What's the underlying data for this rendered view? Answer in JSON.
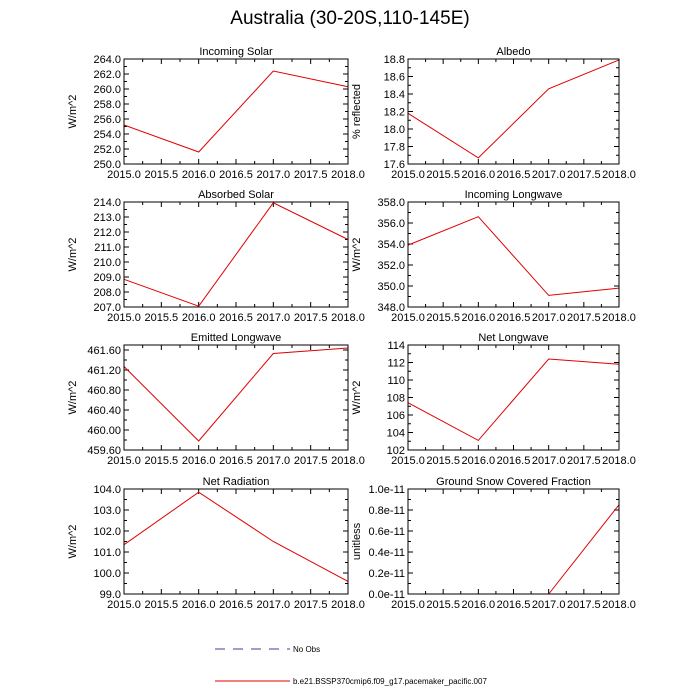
{
  "page": {
    "title": "Australia (30-20S,110-145E)"
  },
  "legend": {
    "entries": [
      {
        "label": "No Obs",
        "color": "#3b3ba0",
        "dash": true
      },
      {
        "label": "b.e21.BSSP370cmip6.f09_g17.pacemaker_pacific.007",
        "color": "#e00000",
        "dash": false
      }
    ]
  },
  "chart_data": [
    {
      "type": "line",
      "title": "Incoming Solar",
      "ylabel": "W/m^2",
      "x": [
        2015,
        2016,
        2017,
        2018
      ],
      "xlim": [
        2015,
        2018
      ],
      "ylim": [
        250,
        264
      ],
      "yticks": [
        "250.0",
        "252.0",
        "254.0",
        "256.0",
        "258.0",
        "260.0",
        "262.0",
        "264.0"
      ],
      "ytick_values": [
        250,
        252,
        254,
        256,
        258,
        260,
        262,
        264
      ],
      "series": [
        {
          "values": [
            255.2,
            251.6,
            262.4,
            260.3
          ],
          "color": "#e00000"
        }
      ]
    },
    {
      "type": "line",
      "title": "Albedo",
      "ylabel": "% reflected",
      "x": [
        2015,
        2016,
        2017,
        2018
      ],
      "xlim": [
        2015,
        2018
      ],
      "ylim": [
        17.6,
        18.8
      ],
      "yticks": [
        "17.6",
        "17.8",
        "18.0",
        "18.2",
        "18.4",
        "18.6",
        "18.8"
      ],
      "ytick_values": [
        17.6,
        17.8,
        18.0,
        18.2,
        18.4,
        18.6,
        18.8
      ],
      "series": [
        {
          "values": [
            18.18,
            17.67,
            18.46,
            18.79
          ],
          "color": "#e00000"
        }
      ]
    },
    {
      "type": "line",
      "title": "Absorbed Solar",
      "ylabel": "W/m^2",
      "x": [
        2015,
        2016,
        2017,
        2018
      ],
      "xlim": [
        2015,
        2018
      ],
      "ylim": [
        207,
        214
      ],
      "yticks": [
        "207.0",
        "208.0",
        "209.0",
        "210.0",
        "211.0",
        "212.0",
        "213.0",
        "214.0"
      ],
      "ytick_values": [
        207,
        208,
        209,
        210,
        211,
        212,
        213,
        214
      ],
      "series": [
        {
          "values": [
            208.85,
            207.05,
            213.95,
            211.5
          ],
          "color": "#e00000"
        }
      ]
    },
    {
      "type": "line",
      "title": "Incoming Longwave",
      "ylabel": "W/m^2",
      "x": [
        2015,
        2016,
        2017,
        2018
      ],
      "xlim": [
        2015,
        2018
      ],
      "ylim": [
        348,
        358
      ],
      "yticks": [
        "348.0",
        "350.0",
        "352.0",
        "354.0",
        "356.0",
        "358.0"
      ],
      "ytick_values": [
        348,
        350,
        352,
        354,
        356,
        358
      ],
      "series": [
        {
          "values": [
            353.9,
            356.6,
            349.1,
            349.8
          ],
          "color": "#e00000"
        }
      ]
    },
    {
      "type": "line",
      "title": "Emitted Longwave",
      "ylabel": "W/m^2",
      "x": [
        2015,
        2016,
        2017,
        2018
      ],
      "xlim": [
        2015,
        2018
      ],
      "ylim": [
        459.6,
        461.7
      ],
      "yticks": [
        "459.60",
        "460.00",
        "460.40",
        "460.80",
        "461.20",
        "461.60"
      ],
      "ytick_values": [
        459.6,
        460.0,
        460.4,
        460.8,
        461.2,
        461.6
      ],
      "series": [
        {
          "values": [
            461.27,
            459.78,
            461.53,
            461.64
          ],
          "color": "#e00000"
        }
      ]
    },
    {
      "type": "line",
      "title": "Net Longwave",
      "ylabel": "W/m^2",
      "x": [
        2015,
        2016,
        2017,
        2018
      ],
      "xlim": [
        2015,
        2018
      ],
      "ylim": [
        102,
        114
      ],
      "yticks": [
        "102",
        "104",
        "106",
        "108",
        "110",
        "112",
        "114"
      ],
      "ytick_values": [
        102,
        104,
        106,
        108,
        110,
        112,
        114
      ],
      "series": [
        {
          "values": [
            107.4,
            103.1,
            112.4,
            111.8
          ],
          "color": "#e00000"
        }
      ]
    },
    {
      "type": "line",
      "title": "Net Radiation",
      "ylabel": "W/m^2",
      "x": [
        2015,
        2016,
        2017,
        2018
      ],
      "xlim": [
        2015,
        2018
      ],
      "ylim": [
        99,
        104
      ],
      "yticks": [
        "99.0",
        "100.0",
        "101.0",
        "102.0",
        "103.0",
        "104.0"
      ],
      "ytick_values": [
        99,
        100,
        101,
        102,
        103,
        104
      ],
      "series": [
        {
          "values": [
            101.35,
            103.85,
            101.5,
            99.6
          ],
          "color": "#e00000"
        }
      ]
    },
    {
      "type": "line",
      "title": "Ground Snow Covered Fraction",
      "ylabel": "unitless",
      "x": [
        2015,
        2016,
        2017,
        2018
      ],
      "xlim": [
        2015,
        2018
      ],
      "ylim": [
        0,
        1e-11
      ],
      "yticks": [
        "0.0e-11",
        "0.2e-11",
        "0.4e-11",
        "0.6e-11",
        "0.8e-11",
        "1.0e-11"
      ],
      "ytick_values": [
        0,
        2e-12,
        4e-12,
        6e-12,
        8e-12,
        1e-11
      ],
      "series": [
        {
          "values": [
            null,
            null,
            0,
            8.5e-12
          ],
          "color": "#e00000"
        }
      ]
    }
  ],
  "xticks": [
    "2015.0",
    "2015.5",
    "2016.0",
    "2016.5",
    "2017.0",
    "2017.5",
    "2018.0"
  ],
  "xtick_values": [
    2015,
    2015.5,
    2016,
    2016.5,
    2017,
    2017.5,
    2018
  ]
}
